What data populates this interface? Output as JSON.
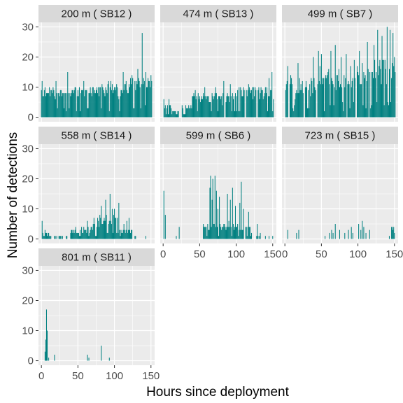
{
  "chart_data": {
    "type": "bar",
    "layout": "faceted 3x3 grid (7 panels), shared axes",
    "xlabel": "Hours since deployment",
    "ylabel": "Number of detections",
    "xlim": [
      -4,
      155
    ],
    "ylim": [
      -1.5,
      31.5
    ],
    "x_ticks": [
      0,
      50,
      100,
      150
    ],
    "x_tick_labels": [
      "0",
      "50",
      "100",
      "150"
    ],
    "y_ticks": [
      0,
      10,
      20,
      30
    ],
    "y_tick_labels": [
      "0",
      "10",
      "20",
      "30"
    ],
    "grid": true,
    "bar_color": "#008080",
    "panel_background": "#ebebeb",
    "strip_background": "#d9d9d9",
    "gridline_color": "#ffffff",
    "panels": [
      {
        "label": "200 m ( SB12 )",
        "segments": [
          [
            0,
            44,
            5,
            4,
            10,
            1
          ],
          [
            44,
            80,
            6,
            4,
            10,
            2
          ],
          [
            80,
            120,
            6,
            5,
            13,
            3
          ],
          [
            120,
            152,
            8,
            5,
            15,
            4
          ]
        ],
        "gaps": [],
        "bars": [
          [
            1,
            12
          ],
          [
            5,
            10
          ],
          [
            20,
            12
          ],
          [
            36,
            15
          ],
          [
            58,
            12
          ],
          [
            95,
            12
          ],
          [
            112,
            15
          ],
          [
            124,
            14
          ],
          [
            132,
            16
          ],
          [
            138,
            28
          ],
          [
            143,
            15
          ],
          [
            150,
            14
          ]
        ]
      },
      {
        "label": "474 m ( SB13 )",
        "segments": [
          [
            1,
            12,
            2,
            2,
            6,
            11
          ],
          [
            12,
            22,
            1,
            1,
            3,
            12
          ],
          [
            26,
            40,
            2,
            2,
            6,
            13
          ],
          [
            40,
            100,
            4,
            4,
            10,
            14
          ],
          [
            100,
            152,
            5,
            5,
            10,
            15
          ]
        ],
        "gaps": [
          [
            22,
            26
          ],
          [
            84,
            86
          ],
          [
            112,
            114
          ],
          [
            128,
            130
          ]
        ],
        "bars": [
          [
            1,
            6
          ],
          [
            8,
            6
          ],
          [
            44,
            9
          ],
          [
            57,
            10
          ],
          [
            72,
            10
          ],
          [
            83,
            12
          ],
          [
            92,
            11
          ],
          [
            104,
            10
          ],
          [
            117,
            11
          ],
          [
            130,
            9
          ],
          [
            140,
            10
          ],
          [
            145,
            13
          ],
          [
            149,
            15
          ]
        ]
      },
      {
        "label": "499 m ( SB7 )",
        "segments": [
          [
            1,
            32,
            6,
            6,
            14,
            21
          ],
          [
            32,
            60,
            6,
            8,
            20,
            22
          ],
          [
            60,
            90,
            6,
            8,
            20,
            23
          ],
          [
            90,
            120,
            8,
            8,
            22,
            24
          ],
          [
            120,
            152,
            10,
            8,
            24,
            25
          ]
        ],
        "gaps": [
          [
            5,
            7
          ],
          [
            26,
            28
          ],
          [
            43,
            45
          ],
          [
            85,
            86
          ],
          [
            97,
            99
          ],
          [
            115,
            116
          ],
          [
            140,
            141
          ]
        ],
        "bars": [
          [
            4,
            17
          ],
          [
            18,
            18
          ],
          [
            39,
            20
          ],
          [
            46,
            22
          ],
          [
            50,
            21
          ],
          [
            63,
            22
          ],
          [
            69,
            24
          ],
          [
            77,
            20
          ],
          [
            84,
            21
          ],
          [
            95,
            19
          ],
          [
            102,
            22
          ],
          [
            113,
            25
          ],
          [
            122,
            24
          ],
          [
            127,
            29
          ],
          [
            133,
            27
          ],
          [
            140,
            30
          ],
          [
            144,
            29
          ],
          [
            148,
            28
          ]
        ]
      },
      {
        "label": "558 m ( SB14 )",
        "segments": [
          [
            1,
            14,
            0,
            2,
            5,
            31
          ],
          [
            14,
            40,
            0,
            1,
            3,
            32
          ],
          [
            40,
            64,
            1,
            2,
            5,
            33
          ],
          [
            64,
            80,
            2,
            3,
            8,
            34
          ],
          [
            80,
            106,
            3,
            5,
            10,
            35
          ],
          [
            106,
            125,
            1,
            2,
            6,
            36
          ],
          [
            125,
            130,
            0,
            1,
            3,
            37
          ]
        ],
        "gaps": [
          [
            15,
            18
          ],
          [
            30,
            34
          ],
          [
            37,
            40
          ],
          [
            125,
            128
          ]
        ],
        "bars": [
          [
            1,
            6
          ],
          [
            5,
            3
          ],
          [
            47,
            4
          ],
          [
            63,
            6
          ],
          [
            72,
            7
          ],
          [
            77,
            7
          ],
          [
            82,
            11
          ],
          [
            88,
            13
          ],
          [
            94,
            15
          ],
          [
            100,
            10
          ],
          [
            106,
            12
          ],
          [
            113,
            5
          ],
          [
            117,
            6
          ],
          [
            120,
            7
          ],
          [
            143,
            1
          ]
        ]
      },
      {
        "label": "599 m ( SB6 )",
        "segments": [
          [
            55,
            90,
            2,
            3,
            8,
            41
          ],
          [
            90,
            120,
            2,
            3,
            8,
            42
          ],
          [
            120,
            135,
            0,
            1,
            3,
            43
          ]
        ],
        "gaps": [
          [
            110,
            113
          ],
          [
            121,
            128
          ]
        ],
        "bars": [
          [
            1,
            16
          ],
          [
            3,
            8
          ],
          [
            18,
            1
          ],
          [
            22,
            4
          ],
          [
            64,
            17
          ],
          [
            65,
            21
          ],
          [
            67,
            13
          ],
          [
            68,
            20
          ],
          [
            71,
            21
          ],
          [
            73,
            16
          ],
          [
            75,
            10
          ],
          [
            77,
            14
          ],
          [
            80,
            3
          ],
          [
            88,
            15
          ],
          [
            92,
            13
          ],
          [
            95,
            17
          ],
          [
            99,
            11
          ],
          [
            105,
            12
          ],
          [
            107,
            19
          ],
          [
            110,
            10
          ],
          [
            117,
            9
          ],
          [
            121,
            2
          ],
          [
            129,
            5
          ],
          [
            133,
            2
          ],
          [
            140,
            1
          ],
          [
            145,
            1
          ],
          [
            150,
            1
          ]
        ]
      },
      {
        "label": "723 m ( SB15 )",
        "segments": [],
        "gaps": [],
        "bars": [
          [
            4,
            3
          ],
          [
            16,
            2
          ],
          [
            19,
            3
          ],
          [
            55,
            1
          ],
          [
            61,
            2
          ],
          [
            64,
            3
          ],
          [
            66,
            2
          ],
          [
            69,
            5
          ],
          [
            75,
            3
          ],
          [
            82,
            2
          ],
          [
            87,
            3
          ],
          [
            91,
            4
          ],
          [
            93,
            2
          ],
          [
            101,
            5
          ],
          [
            104,
            3
          ],
          [
            106,
            6
          ],
          [
            108,
            4
          ],
          [
            111,
            2
          ],
          [
            116,
            3
          ],
          [
            143,
            1
          ],
          [
            146,
            4
          ],
          [
            147,
            4
          ],
          [
            148,
            3
          ],
          [
            149,
            4
          ],
          [
            150,
            2
          ]
        ]
      },
      {
        "label": "801 m ( SB11 )",
        "segments": [],
        "gaps": [],
        "bars": [
          [
            5,
            3
          ],
          [
            6,
            7
          ],
          [
            7,
            17
          ],
          [
            8,
            10
          ],
          [
            10,
            1
          ],
          [
            18,
            2
          ],
          [
            63,
            2
          ],
          [
            65,
            1
          ],
          [
            82,
            5
          ],
          [
            93,
            1
          ]
        ]
      }
    ]
  }
}
